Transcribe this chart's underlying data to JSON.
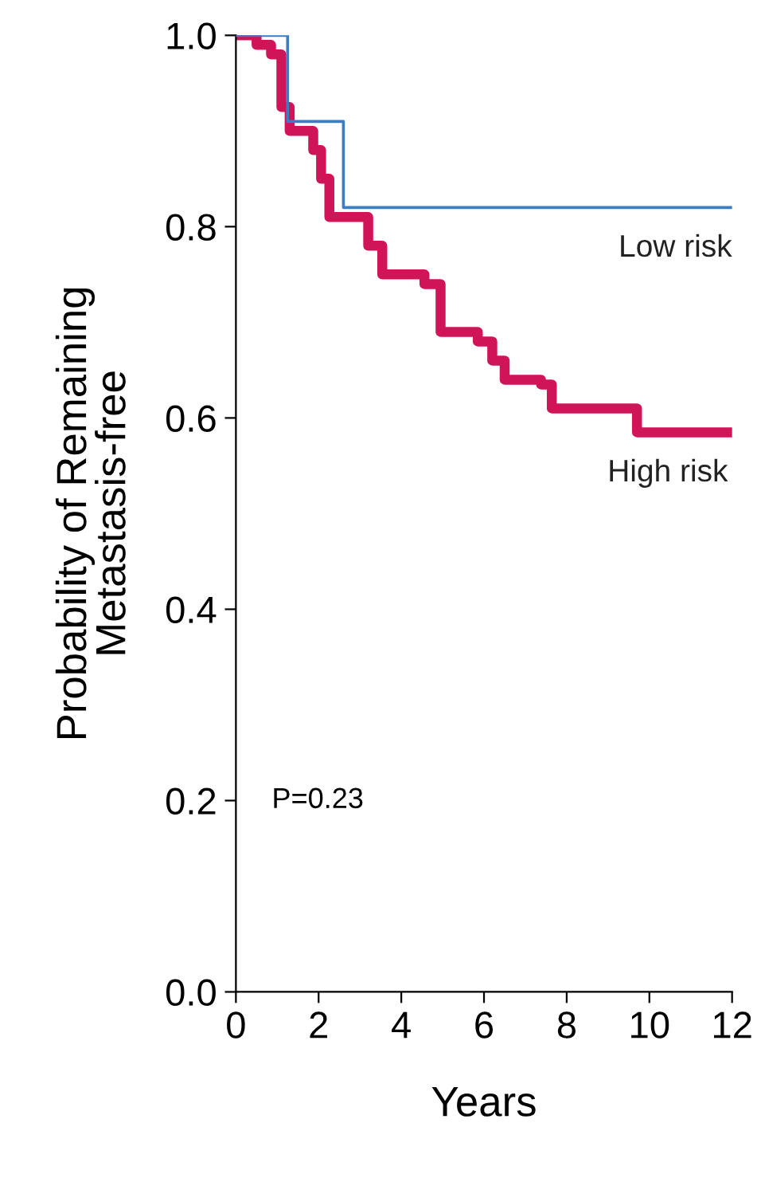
{
  "chart_data": {
    "type": "step",
    "xlabel": "Years",
    "ylabel": "Probability of Remaining\nMetastasis-free",
    "xlim": [
      0,
      12
    ],
    "xticks": [
      0,
      2,
      4,
      6,
      8,
      10,
      12
    ],
    "ylim": [
      0,
      1.0
    ],
    "yticks": [
      {
        "value": 0,
        "label": "0.0"
      },
      0.2,
      0.4,
      0.6,
      0.8,
      {
        "value": 1.0,
        "label": "1.0"
      }
    ],
    "grid": false,
    "legend": false,
    "series": [
      {
        "name": "Low risk",
        "color": "#3b7dc0",
        "x": [
          0,
          1.25,
          2.6,
          12
        ],
        "values": [
          1.0,
          0.91,
          0.82,
          0.82
        ]
      },
      {
        "name": "High risk",
        "color": "#cf1458",
        "x": [
          0,
          0.5,
          0.85,
          1.1,
          1.3,
          1.87,
          2.06,
          2.26,
          2.9,
          3.2,
          3.54,
          4.18,
          4.56,
          4.95,
          5.85,
          6.2,
          6.5,
          7.38,
          7.64,
          9.05,
          9.7,
          11.9
        ],
        "values": [
          1.0,
          0.99,
          0.98,
          0.925,
          0.9,
          0.88,
          0.85,
          0.81,
          0.81,
          0.78,
          0.75,
          0.75,
          0.74,
          0.69,
          0.68,
          0.66,
          0.64,
          0.635,
          0.61,
          0.61,
          0.585,
          0.585
        ]
      }
    ],
    "annotations": [
      "P=0.23"
    ]
  }
}
